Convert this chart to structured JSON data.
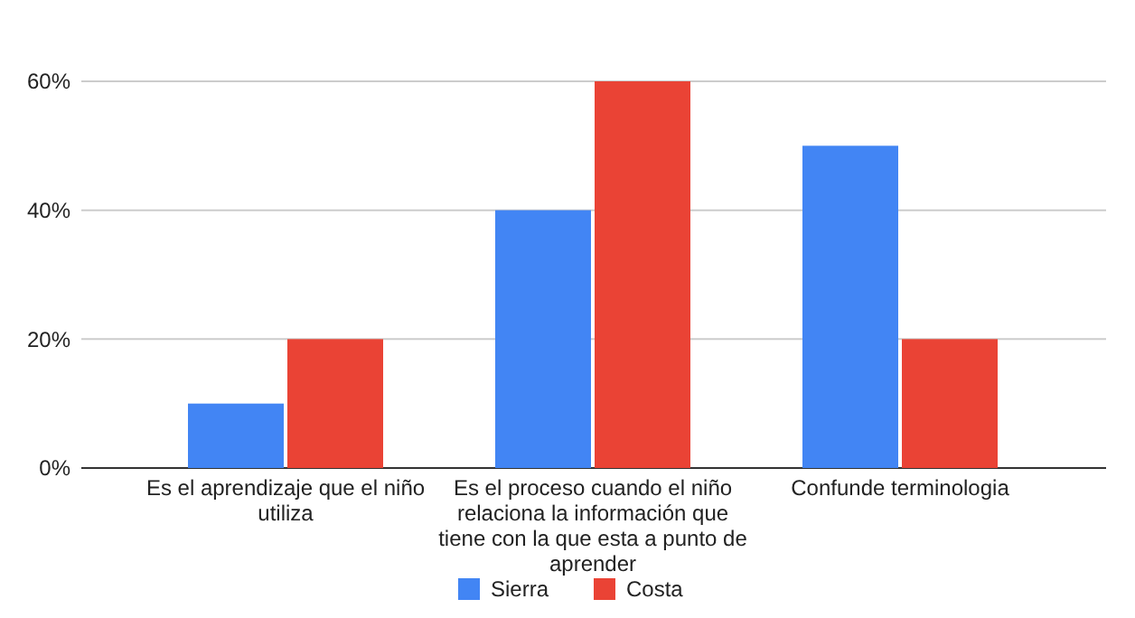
{
  "chart_data": {
    "type": "bar",
    "categories": [
      "Es el aprendizaje que el niño utiliza",
      "Es el proceso cuando el niño relaciona la información que tiene con la que esta a punto de aprender",
      "Confunde terminologia"
    ],
    "series": [
      {
        "name": "Sierra",
        "color": "#4285f4",
        "values": [
          10,
          40,
          50
        ]
      },
      {
        "name": "Costa",
        "color": "#ea4335",
        "values": [
          20,
          60,
          20
        ]
      }
    ],
    "ylim": [
      0,
      60
    ],
    "yticks": [
      {
        "value": 0,
        "label": "0%"
      },
      {
        "value": 20,
        "label": "20%"
      },
      {
        "value": 40,
        "label": "40%"
      },
      {
        "value": 60,
        "label": "60%"
      }
    ],
    "grid": "y",
    "legend": "bottom"
  }
}
